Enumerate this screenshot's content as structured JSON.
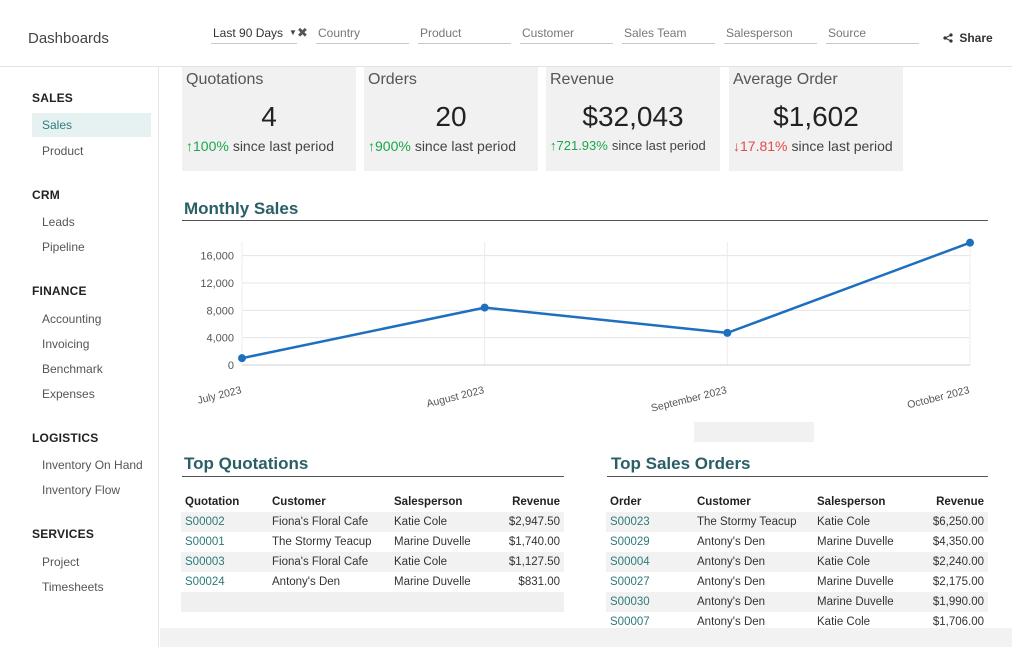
{
  "app": {
    "title": "Dashboards"
  },
  "filters": {
    "period": "Last 90 Days",
    "clear_icon": "✖",
    "country": "Country",
    "product": "Product",
    "customer": "Customer",
    "sales_team": "Sales Team",
    "salesperson": "Salesperson",
    "source": "Source"
  },
  "share": {
    "icon": "share-icon",
    "label": "Share"
  },
  "sidebar": {
    "sales": {
      "title": "SALES",
      "items": [
        "Sales",
        "Product"
      ]
    },
    "crm": {
      "title": "CRM",
      "items": [
        "Leads",
        "Pipeline"
      ]
    },
    "finance": {
      "title": "FINANCE",
      "items": [
        "Accounting",
        "Invoicing",
        "Benchmark",
        "Expenses"
      ]
    },
    "logistics": {
      "title": "LOGISTICS",
      "items": [
        "Inventory On Hand",
        "Inventory Flow"
      ]
    },
    "services": {
      "title": "SERVICES",
      "items": [
        "Project",
        "Timesheets"
      ]
    }
  },
  "kpis": [
    {
      "title": "Quotations",
      "value": "4",
      "arrow": "↑",
      "pct": "100%",
      "text": "since last period",
      "direction": "up"
    },
    {
      "title": "Orders",
      "value": "20",
      "arrow": "↑",
      "pct": "900%",
      "text": "since last period",
      "direction": "up"
    },
    {
      "title": "Revenue",
      "value": "$32,043",
      "arrow": "↑",
      "pct": "721.93%",
      "text": "since last period",
      "direction": "up"
    },
    {
      "title": "Average Order",
      "value": "$1,602",
      "arrow": "↓",
      "pct": "17.81%",
      "text": "since last period",
      "direction": "down"
    }
  ],
  "colors": {
    "up": "#1aa64b",
    "down": "#e14b4b",
    "line": "#1f6fbf",
    "heading": "#2b5f66",
    "link": "#2e7a7a"
  },
  "monthly_sales": {
    "title": "Monthly Sales"
  },
  "chart_data": {
    "type": "line",
    "title": "Monthly Sales",
    "categories": [
      "July 2023",
      "August 2023",
      "September 2023",
      "October 2023"
    ],
    "series": [
      {
        "values": [
          1000,
          8400,
          4700,
          17900
        ]
      }
    ],
    "yticks": [
      "0",
      "4,000",
      "8,000",
      "12,000",
      "16,000"
    ],
    "ylim": [
      0,
      18000
    ],
    "grid": true
  },
  "top_quotations": {
    "title": "Top Quotations",
    "headers": [
      "Quotation",
      "Customer",
      "Salesperson",
      "Revenue"
    ],
    "rows": [
      [
        "S00002",
        "Fiona's Floral Cafe",
        "Katie Cole",
        "$2,947.50"
      ],
      [
        "S00001",
        "The Stormy Teacup",
        "Marine Duvelle",
        "$1,740.00"
      ],
      [
        "S00003",
        "Fiona's Floral Cafe",
        "Katie Cole",
        "$1,127.50"
      ],
      [
        "S00024",
        "Antony's Den",
        "Marine Duvelle",
        "$831.00"
      ]
    ]
  },
  "top_sales_orders": {
    "title": "Top Sales Orders",
    "headers": [
      "Order",
      "Customer",
      "Salesperson",
      "Revenue"
    ],
    "rows": [
      [
        "S00023",
        "The Stormy Teacup",
        "Katie Cole",
        "$6,250.00"
      ],
      [
        "S00029",
        "Antony's Den",
        "Marine Duvelle",
        "$4,350.00"
      ],
      [
        "S00004",
        "Antony's Den",
        "Katie Cole",
        "$2,240.00"
      ],
      [
        "S00027",
        "Antony's Den",
        "Marine Duvelle",
        "$2,175.00"
      ],
      [
        "S00030",
        "Antony's Den",
        "Marine Duvelle",
        "$1,990.00"
      ],
      [
        "S00007",
        "Antony's Den",
        "Katie Cole",
        "$1,706.00"
      ]
    ]
  }
}
